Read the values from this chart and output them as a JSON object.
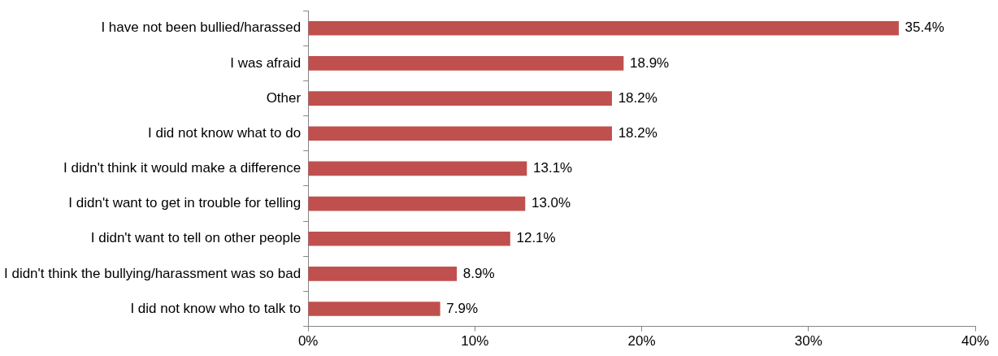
{
  "chart_data": {
    "type": "bar",
    "orientation": "horizontal",
    "categories": [
      "I have not been bullied/harassed",
      "I was afraid",
      "Other",
      "I did not know what to do",
      "I didn't think it would make a difference",
      "I didn't want to get in trouble for telling",
      "I didn't want to tell on other people",
      "I didn't think the bullying/harassment was so bad",
      "I did not know who to talk to"
    ],
    "values": [
      35.4,
      18.9,
      18.2,
      18.2,
      13.1,
      13.0,
      12.1,
      8.9,
      7.9
    ],
    "value_labels": [
      "35.4%",
      "18.9%",
      "18.2%",
      "18.2%",
      "13.1%",
      "13.0%",
      "12.1%",
      "8.9%",
      "7.9%"
    ],
    "color": "#c0504d",
    "xlim": [
      0,
      40
    ],
    "xticks": [
      {
        "value": 0,
        "label": "0%"
      },
      {
        "value": 10,
        "label": "10%"
      },
      {
        "value": 20,
        "label": "20%"
      },
      {
        "value": 30,
        "label": "30%"
      },
      {
        "value": 40,
        "label": "40%"
      }
    ],
    "grid": false,
    "legend": false
  }
}
